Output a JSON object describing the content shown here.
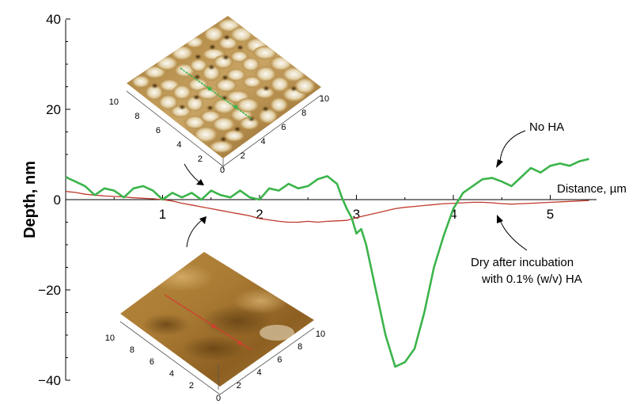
{
  "chart_data": {
    "type": "line",
    "title": "",
    "xlabel": "Distance, µm",
    "ylabel": "Depth, nm",
    "xlim": [
      0,
      5.4
    ],
    "ylim": [
      -40,
      40
    ],
    "xticks": [
      1,
      2,
      3,
      4,
      5
    ],
    "yticks": [
      40,
      20,
      0,
      -20,
      -40
    ],
    "ytick_labels": [
      "40",
      "20",
      "0",
      "−20",
      "−40"
    ],
    "grid": false,
    "legend": "none",
    "series": [
      {
        "name": "No HA",
        "color": "#3cb44b",
        "x": [
          0.0,
          0.1,
          0.2,
          0.3,
          0.4,
          0.5,
          0.6,
          0.7,
          0.8,
          0.9,
          1.0,
          1.1,
          1.2,
          1.3,
          1.4,
          1.5,
          1.6,
          1.7,
          1.8,
          1.9,
          2.0,
          2.1,
          2.2,
          2.3,
          2.4,
          2.5,
          2.6,
          2.7,
          2.8,
          2.85,
          2.9,
          2.95,
          3.0,
          3.05,
          3.1,
          3.2,
          3.3,
          3.4,
          3.5,
          3.6,
          3.7,
          3.8,
          3.9,
          4.0,
          4.1,
          4.2,
          4.3,
          4.4,
          4.5,
          4.6,
          4.7,
          4.8,
          4.9,
          5.0,
          5.1,
          5.2,
          5.3,
          5.4
        ],
        "y": [
          5.0,
          4.0,
          3.0,
          1.0,
          2.5,
          2.0,
          0.5,
          2.5,
          3.0,
          2.0,
          0.0,
          1.5,
          0.5,
          1.5,
          0.0,
          2.0,
          1.0,
          0.5,
          2.0,
          0.5,
          0.0,
          2.5,
          2.0,
          3.5,
          2.5,
          3.0,
          4.5,
          5.2,
          3.5,
          0.5,
          -2.0,
          -4.0,
          -7.5,
          -6.5,
          -10.0,
          -20.0,
          -30.0,
          -37.0,
          -36.0,
          -33.0,
          -25.0,
          -15.0,
          -8.0,
          -2.0,
          1.5,
          3.0,
          4.5,
          4.8,
          4.0,
          3.0,
          5.0,
          7.0,
          6.0,
          7.5,
          8.0,
          7.5,
          8.5,
          9.0
        ]
      },
      {
        "name": "Dry after incubation with 0.1% (w/v) HA",
        "color": "#c0392b",
        "x": [
          0.0,
          0.1,
          0.2,
          0.3,
          0.4,
          0.5,
          0.6,
          0.7,
          0.8,
          0.9,
          1.0,
          1.1,
          1.2,
          1.3,
          1.4,
          1.5,
          1.6,
          1.7,
          1.8,
          1.9,
          2.0,
          2.1,
          2.2,
          2.3,
          2.4,
          2.5,
          2.6,
          2.7,
          2.8,
          2.9,
          3.0,
          3.1,
          3.2,
          3.3,
          3.4,
          3.5,
          3.6,
          3.7,
          3.8,
          3.9,
          4.0,
          4.1,
          4.2,
          4.3,
          4.4,
          4.5,
          4.6,
          4.7,
          4.8,
          4.9,
          5.0,
          5.1,
          5.2,
          5.3,
          5.4
        ],
        "y": [
          1.8,
          1.6,
          1.2,
          1.0,
          0.8,
          0.7,
          0.6,
          0.4,
          0.3,
          0.2,
          0.0,
          -0.3,
          -0.8,
          -1.2,
          -1.6,
          -2.0,
          -2.4,
          -2.8,
          -3.2,
          -3.6,
          -4.2,
          -4.5,
          -4.8,
          -5.0,
          -5.0,
          -4.8,
          -5.0,
          -4.8,
          -4.7,
          -4.6,
          -4.0,
          -3.5,
          -3.0,
          -2.5,
          -2.0,
          -1.7,
          -1.5,
          -1.3,
          -1.1,
          -0.9,
          -0.8,
          -0.7,
          -0.6,
          -0.6,
          -0.7,
          -0.9,
          -1.0,
          -0.9,
          -0.8,
          -0.7,
          -0.6,
          -0.5,
          -0.4,
          -0.3,
          -0.2
        ]
      }
    ],
    "annotations": [
      {
        "text": "No HA"
      },
      {
        "text": "Dry after incubation"
      },
      {
        "text": "with 0.1% (w/v) HA"
      }
    ]
  },
  "insets": {
    "top": {
      "description_colors": {
        "surface_light": "#f2e8d2",
        "surface_dark": "#5a3b10",
        "line": "#3cb44b"
      },
      "left_ticks": [
        "10",
        "8",
        "6",
        "4",
        "2"
      ],
      "right_ticks": [
        "0",
        "2",
        "4",
        "6",
        "8",
        "10"
      ]
    },
    "bottom": {
      "description_colors": {
        "surface_light": "#c49a4e",
        "surface_dark": "#6e4a17",
        "line": "#d43b2f"
      },
      "left_ticks": [
        "10",
        "8",
        "6",
        "4",
        "2"
      ],
      "right_ticks": [
        "0",
        "2",
        "4",
        "6",
        "8",
        "10"
      ]
    }
  }
}
